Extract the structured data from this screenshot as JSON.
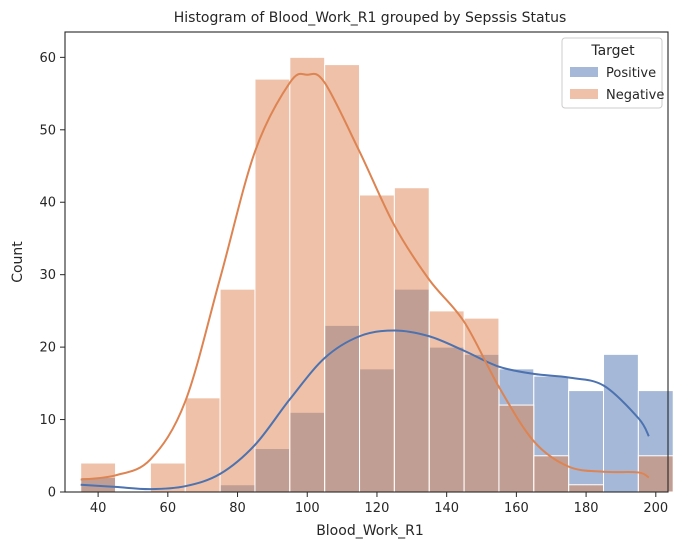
{
  "chart_data": {
    "type": "bar",
    "title": "Histogram of Blood_Work_R1 grouped by Sepssis  Status",
    "xlabel": "Blood_Work_R1",
    "ylabel": "Count",
    "xlim": [
      30.5,
      203.5
    ],
    "ylim": [
      0,
      63.5
    ],
    "xticks": [
      40,
      60,
      80,
      100,
      120,
      140,
      160,
      180,
      200
    ],
    "yticks": [
      0,
      10,
      20,
      30,
      40,
      50,
      60
    ],
    "grid": false,
    "legend": {
      "title": "Target",
      "placement": "top-right",
      "entries": [
        "Positive",
        "Negative"
      ]
    },
    "bin_edges": [
      35,
      45,
      55,
      65,
      75,
      85,
      95,
      105,
      115,
      125,
      135,
      145,
      155,
      165,
      175,
      185,
      195
    ],
    "series": [
      {
        "name": "Positive",
        "color": "#4c72b0",
        "values": [
          2,
          0,
          0,
          0,
          1,
          6,
          11,
          23,
          17,
          28,
          20,
          19,
          17,
          16,
          14,
          19,
          14
        ],
        "kde_x": [
          35,
          45,
          55,
          65,
          75,
          85,
          95,
          105,
          115,
          125,
          135,
          145,
          155,
          165,
          175,
          185,
          195,
          198
        ],
        "kde_y": [
          1,
          0.7,
          0.4,
          0.8,
          2.5,
          6.5,
          12.8,
          18.5,
          21.5,
          22.3,
          21.5,
          19.5,
          17.3,
          16.3,
          15.8,
          14.7,
          10.2,
          7.7
        ]
      },
      {
        "name": "Negative",
        "color": "#dd8452",
        "values": [
          4,
          0,
          4,
          13,
          28,
          57,
          60,
          59,
          41,
          42,
          25,
          24,
          12,
          5,
          1,
          0,
          5
        ],
        "kde_x": [
          35,
          45,
          55,
          65,
          75,
          85,
          95,
          100,
          105,
          115,
          125,
          135,
          145,
          155,
          165,
          175,
          185,
          195,
          198
        ],
        "kde_y": [
          1.7,
          2.3,
          4.5,
          12.5,
          29.5,
          47,
          56.5,
          57.6,
          56.5,
          47,
          36.8,
          29.3,
          23.5,
          14.5,
          7,
          3.5,
          2.8,
          2.7,
          2.0
        ]
      }
    ]
  }
}
